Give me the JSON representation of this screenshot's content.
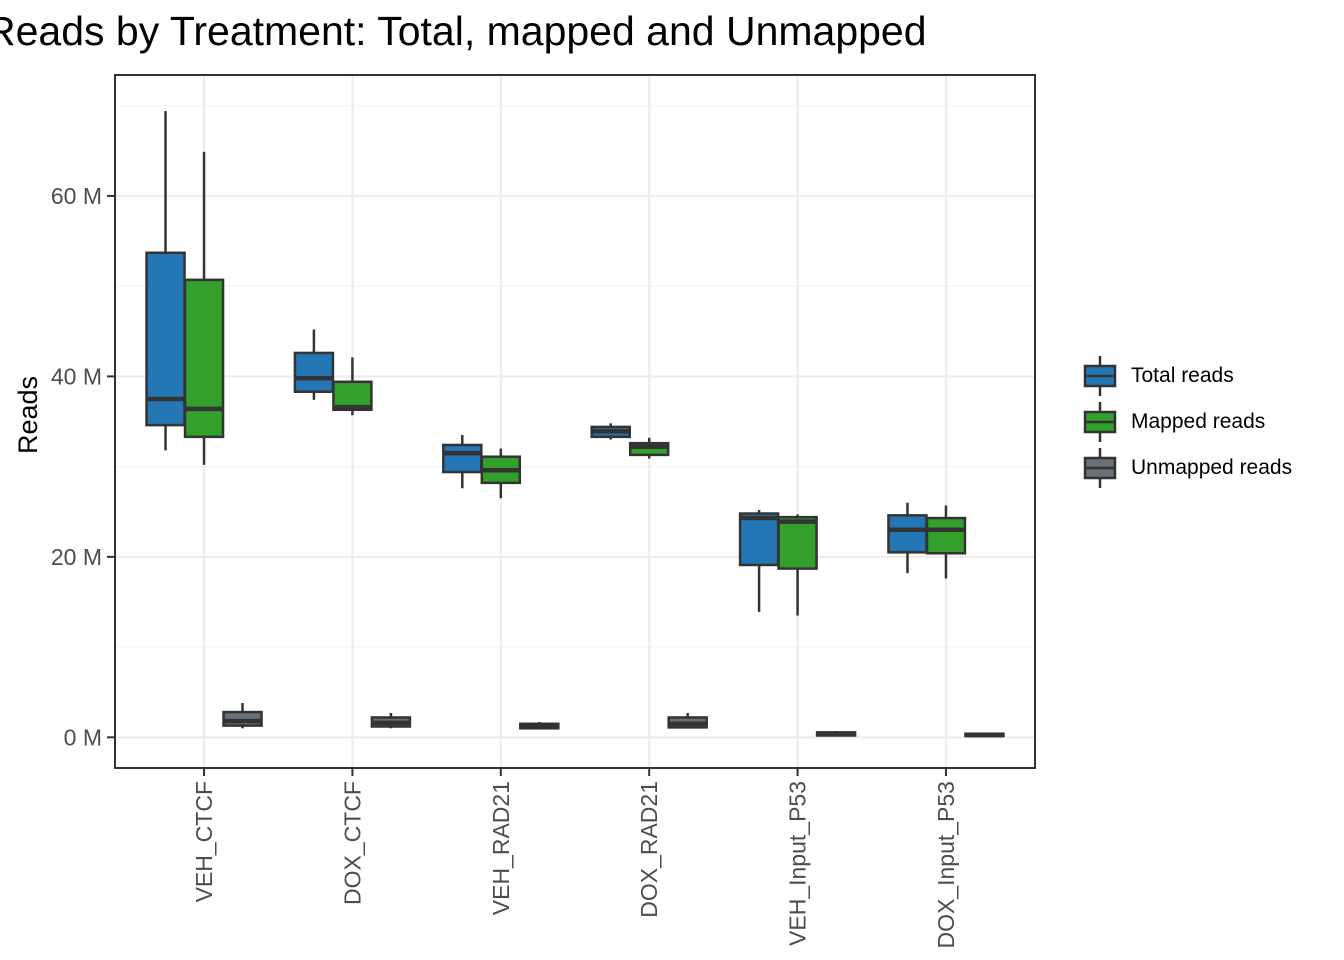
{
  "title": "Reads by Treatment: Total, mapped and Unmapped",
  "y_axis": {
    "label": "Reads",
    "tick_labels": [
      "0 M",
      "20 M",
      "40 M",
      "60 M"
    ],
    "tick_values": [
      0,
      20,
      40,
      60
    ],
    "minor_tick_values": [
      10,
      30,
      50,
      70
    ],
    "unit": "millions of reads"
  },
  "x_axis": {
    "categories": [
      "VEH_CTCF",
      "DOX_CTCF",
      "VEH_RAD21",
      "DOX_RAD21",
      "VEH_Input_P53",
      "DOX_Input_P53"
    ]
  },
  "legend": {
    "items": [
      {
        "label": "Total reads",
        "color": "#2277b4"
      },
      {
        "label": "Mapped reads",
        "color": "#33a02c"
      },
      {
        "label": "Unmapped reads",
        "color": "#6a7077"
      }
    ]
  },
  "colors": {
    "box_stroke": "#333333",
    "panel_border": "#333333",
    "grid_major": "#ebebeb",
    "grid_minor": "#f4f4f4",
    "tick_label": "#4d4d4d",
    "tick_mark": "#333333",
    "background": "#ffffff"
  },
  "chart_data": {
    "type": "boxplot",
    "title": "Reads by Treatment: Total, mapped and Unmapped",
    "xlabel": "",
    "ylabel": "Reads",
    "ylim": [
      -3.4,
      73.4
    ],
    "grid": "major-y, minor-y, major-x",
    "legend_position": "right",
    "values_unit": "M (millions of reads)",
    "categories": [
      "VEH_CTCF",
      "DOX_CTCF",
      "VEH_RAD21",
      "DOX_RAD21",
      "VEH_Input_P53",
      "DOX_Input_P53"
    ],
    "series": [
      {
        "name": "Total reads",
        "color": "#2277b4",
        "boxes": [
          {
            "min": 31.8,
            "q1": 34.6,
            "median": 37.5,
            "q3": 53.7,
            "max": 69.4
          },
          {
            "min": 37.4,
            "q1": 38.3,
            "median": 39.8,
            "q3": 42.6,
            "max": 45.2
          },
          {
            "min": 27.6,
            "q1": 29.4,
            "median": 31.5,
            "q3": 32.4,
            "max": 33.5
          },
          {
            "min": 33.0,
            "q1": 33.3,
            "median": 33.9,
            "q3": 34.4,
            "max": 34.8
          },
          {
            "min": 13.9,
            "q1": 19.1,
            "median": 24.3,
            "q3": 24.8,
            "max": 25.2
          },
          {
            "min": 18.2,
            "q1": 20.5,
            "median": 23.0,
            "q3": 24.6,
            "max": 26.0
          }
        ]
      },
      {
        "name": "Mapped reads",
        "color": "#33a02c",
        "boxes": [
          {
            "min": 30.2,
            "q1": 33.3,
            "median": 36.4,
            "q3": 50.7,
            "max": 64.9
          },
          {
            "min": 35.7,
            "q1": 36.3,
            "median": 36.6,
            "q3": 39.4,
            "max": 42.1
          },
          {
            "min": 26.5,
            "q1": 28.2,
            "median": 29.6,
            "q3": 31.1,
            "max": 32.0
          },
          {
            "min": 30.9,
            "q1": 31.3,
            "median": 32.2,
            "q3": 32.6,
            "max": 33.2
          },
          {
            "min": 13.5,
            "q1": 18.7,
            "median": 23.9,
            "q3": 24.4,
            "max": 24.7
          },
          {
            "min": 17.6,
            "q1": 20.4,
            "median": 23.0,
            "q3": 24.3,
            "max": 25.7
          }
        ]
      },
      {
        "name": "Unmapped reads",
        "color": "#6a7077",
        "boxes": [
          {
            "min": 1.0,
            "q1": 1.3,
            "median": 1.8,
            "q3": 2.8,
            "max": 3.8
          },
          {
            "min": 1.0,
            "q1": 1.2,
            "median": 1.6,
            "q3": 2.2,
            "max": 2.7
          },
          {
            "min": 0.9,
            "q1": 1.0,
            "median": 1.2,
            "q3": 1.5,
            "max": 1.7
          },
          {
            "min": 1.0,
            "q1": 1.1,
            "median": 1.5,
            "q3": 2.2,
            "max": 2.7
          },
          {
            "min": 0.1,
            "q1": 0.2,
            "median": 0.35,
            "q3": 0.55,
            "max": 0.7
          },
          {
            "min": 0.05,
            "q1": 0.15,
            "median": 0.25,
            "q3": 0.4,
            "max": 0.5
          }
        ]
      }
    ]
  }
}
